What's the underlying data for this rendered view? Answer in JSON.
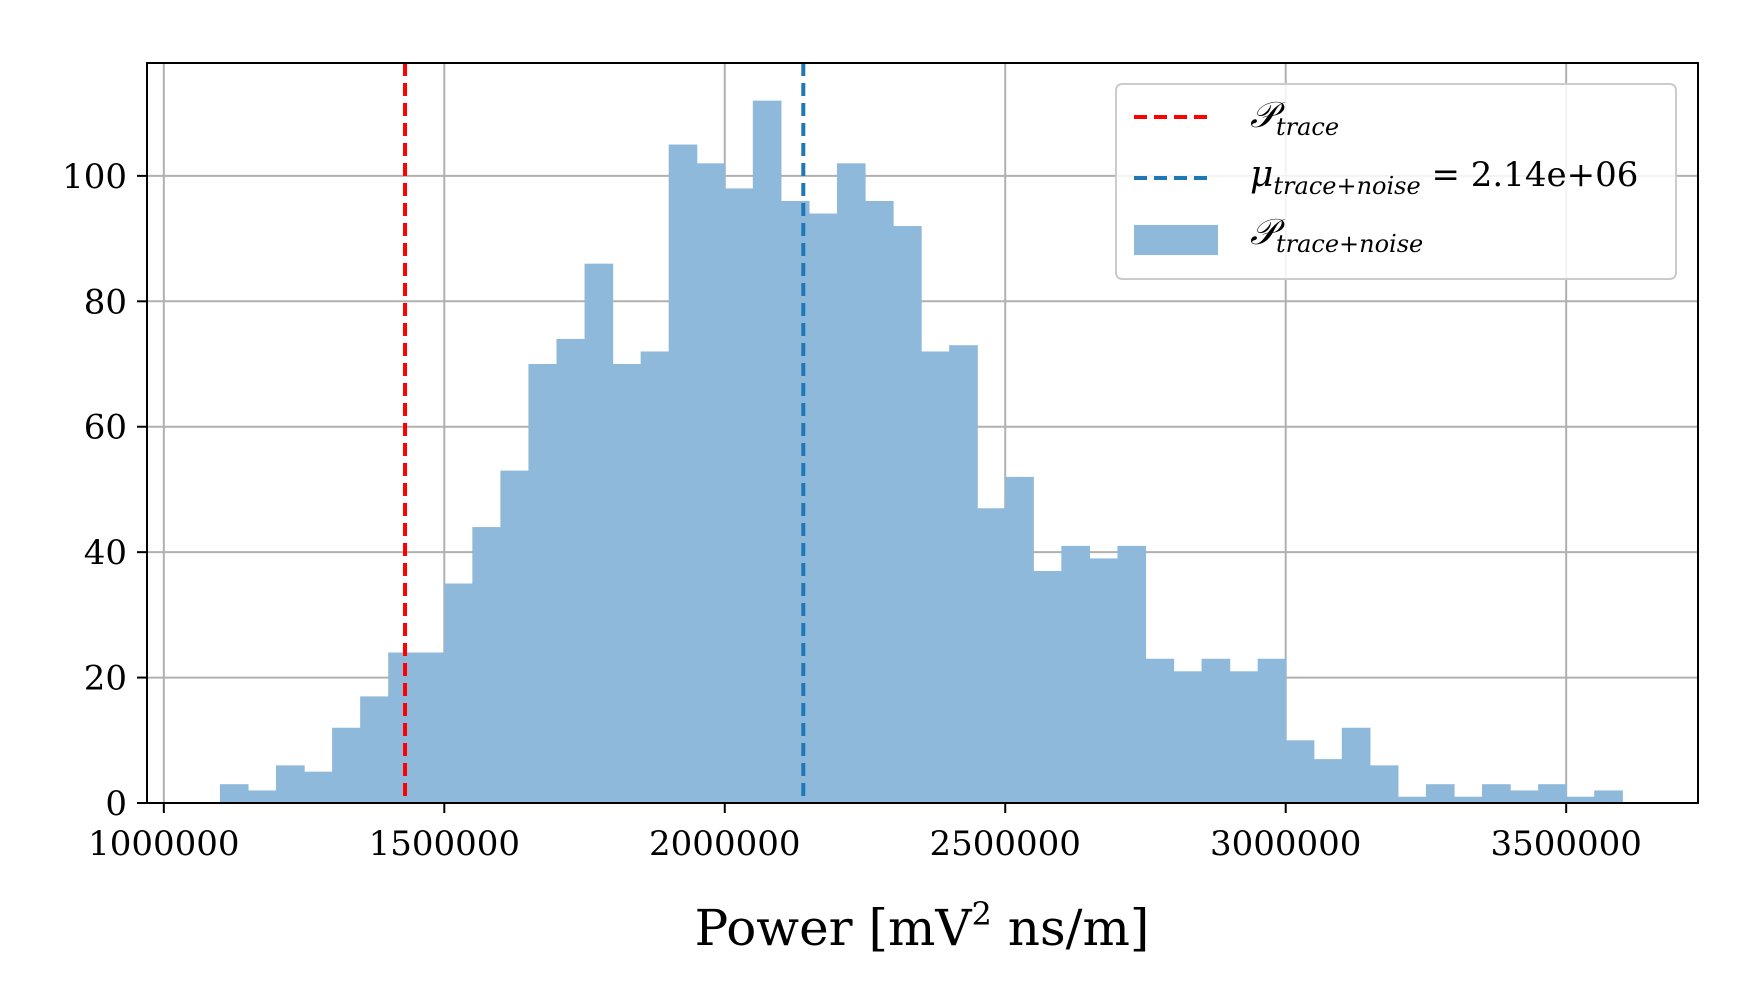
{
  "chart_data": {
    "type": "bar",
    "xlabel": "Power [mV",
    "xlabel_sup": "2",
    "xlabel_tail": " ns/m]",
    "ylabel": "",
    "xlim": [
      970000,
      3735000
    ],
    "ylim": [
      0,
      118
    ],
    "grid": true,
    "legend_position": "top-right",
    "xticks": [
      1000000,
      1500000,
      2000000,
      2500000,
      3000000,
      3500000
    ],
    "xtick_labels": [
      "1000000",
      "1500000",
      "2000000",
      "2500000",
      "3000000",
      "3500000"
    ],
    "yticks": [
      0,
      20,
      40,
      60,
      80,
      100
    ],
    "ytick_labels": [
      "0",
      "20",
      "40",
      "60",
      "80",
      "100"
    ],
    "histogram": {
      "name_main": "𝒫",
      "name_sub": "trace+noise",
      "color": "#8fb9da",
      "bin_start": 1100000,
      "bin_width": 50000,
      "counts": [
        3,
        2,
        6,
        5,
        12,
        17,
        24,
        24,
        35,
        44,
        53,
        70,
        74,
        86,
        70,
        72,
        105,
        102,
        98,
        112,
        96,
        94,
        102,
        96,
        92,
        72,
        73,
        47,
        52,
        37,
        41,
        39,
        41,
        23,
        21,
        23,
        21,
        23,
        10,
        7,
        12,
        6,
        1,
        3,
        1,
        3,
        2,
        3,
        1,
        2
      ]
    },
    "lines": [
      {
        "name_main": "𝒫",
        "name_sub": "trace",
        "x": 1430000,
        "color": "#ff0000"
      },
      {
        "name_main": "μ",
        "name_sub": "trace+noise",
        "name_eq": " = 2.14e+06",
        "x": 2140000,
        "color": "#1f77b4"
      }
    ]
  }
}
